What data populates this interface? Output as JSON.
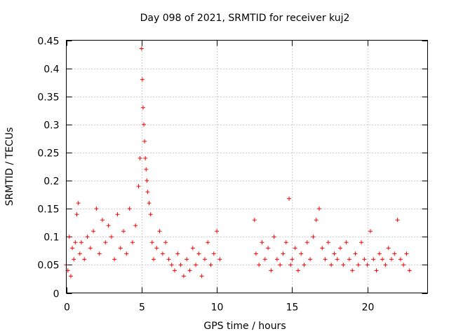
{
  "chart_data": {
    "type": "scatter",
    "title": "Day 098 of 2021, SRMTID for receiver kuj2",
    "xlabel": "GPS time / hours",
    "ylabel": "SRMTID / TECUs",
    "xlim": [
      0,
      24
    ],
    "ylim": [
      0,
      0.45
    ],
    "xticks": [
      0,
      5,
      10,
      15,
      20
    ],
    "xtick_labels": [
      "0",
      "5",
      "10",
      "15",
      "20"
    ],
    "yticks": [
      0,
      0.05,
      0.1,
      0.15,
      0.2,
      0.25,
      0.3,
      0.35,
      0.4,
      0.45
    ],
    "ytick_labels": [
      "0",
      "0.05",
      "0.1",
      "0.15",
      "0.2",
      "0.25",
      "0.3",
      "0.35",
      "0.4",
      "0.45"
    ],
    "grid": true,
    "marker": "+",
    "color": "#ff0000",
    "series": [
      {
        "name": "SRMTID",
        "x": [
          0.0,
          0.1,
          0.2,
          0.3,
          0.4,
          0.5,
          0.6,
          0.7,
          0.8,
          0.9,
          1.0,
          1.2,
          1.4,
          1.6,
          1.8,
          2.0,
          2.2,
          2.4,
          2.6,
          2.8,
          3.0,
          3.2,
          3.4,
          3.6,
          3.8,
          4.0,
          4.2,
          4.4,
          4.6,
          4.8,
          4.9,
          5.0,
          5.05,
          5.1,
          5.15,
          5.2,
          5.25,
          5.3,
          5.35,
          5.4,
          5.5,
          5.6,
          5.7,
          5.8,
          6.0,
          6.2,
          6.4,
          6.6,
          6.8,
          7.0,
          7.2,
          7.4,
          7.6,
          7.8,
          8.0,
          8.2,
          8.4,
          8.6,
          8.8,
          9.0,
          9.2,
          9.4,
          9.6,
          9.8,
          10.0,
          10.2,
          12.5,
          12.6,
          12.8,
          13.0,
          13.2,
          13.4,
          13.6,
          13.8,
          14.0,
          14.2,
          14.4,
          14.6,
          14.8,
          14.9,
          15.0,
          15.2,
          15.4,
          15.6,
          15.8,
          16.0,
          16.2,
          16.4,
          16.6,
          16.8,
          17.0,
          17.2,
          17.4,
          17.6,
          17.8,
          18.0,
          18.2,
          18.4,
          18.6,
          18.8,
          19.0,
          19.2,
          19.4,
          19.6,
          19.8,
          20.0,
          20.2,
          20.4,
          20.6,
          20.8,
          21.0,
          21.2,
          21.4,
          21.6,
          21.8,
          22.0,
          22.2,
          22.4,
          22.6,
          22.8
        ],
        "y": [
          0.05,
          0.04,
          0.1,
          0.03,
          0.08,
          0.06,
          0.09,
          0.14,
          0.16,
          0.07,
          0.09,
          0.06,
          0.1,
          0.08,
          0.11,
          0.15,
          0.07,
          0.13,
          0.09,
          0.12,
          0.1,
          0.06,
          0.14,
          0.08,
          0.11,
          0.07,
          0.15,
          0.09,
          0.12,
          0.19,
          0.24,
          0.435,
          0.38,
          0.33,
          0.3,
          0.27,
          0.24,
          0.22,
          0.2,
          0.18,
          0.16,
          0.14,
          0.09,
          0.06,
          0.08,
          0.11,
          0.07,
          0.09,
          0.06,
          0.05,
          0.04,
          0.07,
          0.05,
          0.03,
          0.06,
          0.04,
          0.08,
          0.05,
          0.07,
          0.03,
          0.06,
          0.09,
          0.05,
          0.07,
          0.11,
          0.06,
          0.13,
          0.07,
          0.05,
          0.09,
          0.06,
          0.08,
          0.04,
          0.1,
          0.06,
          0.05,
          0.07,
          0.09,
          0.168,
          0.05,
          0.06,
          0.08,
          0.04,
          0.07,
          0.05,
          0.09,
          0.06,
          0.1,
          0.13,
          0.15,
          0.08,
          0.06,
          0.09,
          0.05,
          0.07,
          0.06,
          0.08,
          0.05,
          0.09,
          0.06,
          0.04,
          0.07,
          0.05,
          0.09,
          0.06,
          0.05,
          0.11,
          0.06,
          0.04,
          0.07,
          0.06,
          0.05,
          0.08,
          0.06,
          0.07,
          0.13,
          0.06,
          0.05,
          0.07,
          0.04
        ]
      }
    ]
  }
}
